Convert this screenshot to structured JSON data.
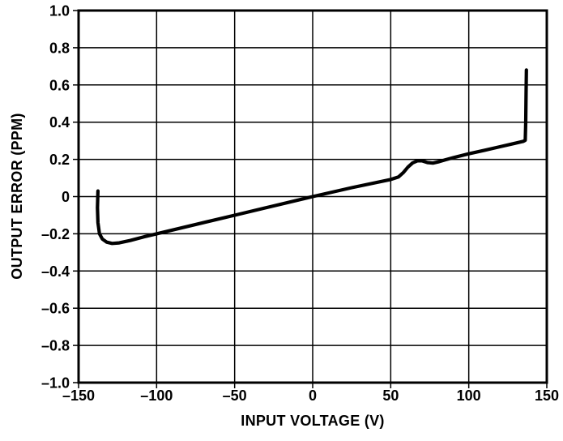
{
  "figure": {
    "background": "#ffffff",
    "foreground": "#000000"
  },
  "chart_data": {
    "type": "line",
    "title": "",
    "xlabel": "INPUT VOLTAGE (V)",
    "ylabel": "OUTPUT ERROR (PPM)",
    "xlim": [
      -150,
      150
    ],
    "ylim": [
      -1.0,
      1.0
    ],
    "grid": true,
    "legend": "none",
    "line_color": "#000000",
    "grid_color": "#000000",
    "x_ticks": [
      -150,
      -100,
      -50,
      0,
      50,
      100,
      150
    ],
    "x_tick_labels": [
      "–150",
      "–100",
      "–50",
      "0",
      "50",
      "100",
      "150"
    ],
    "y_ticks": [
      1.0,
      0.8,
      0.6,
      0.4,
      0.2,
      0,
      -0.2,
      -0.4,
      -0.6,
      -0.8,
      -1.0
    ],
    "y_tick_labels": [
      "1.0",
      "0.8",
      "0.6",
      "0.4",
      "0.2",
      "0",
      "–0.2",
      "–0.4",
      "–0.6",
      "–0.8",
      "–1.0"
    ],
    "series": [
      {
        "name": "output-error-vs-input-voltage",
        "points": [
          [
            -137.6,
            0.03
          ],
          [
            -137.9,
            -0.06
          ],
          [
            -137.6,
            -0.14
          ],
          [
            -136.6,
            -0.2
          ],
          [
            -134.8,
            -0.228
          ],
          [
            -132.0,
            -0.245
          ],
          [
            -128.5,
            -0.252
          ],
          [
            -124.0,
            -0.249
          ],
          [
            -117.0,
            -0.236
          ],
          [
            -108.0,
            -0.216
          ],
          [
            -100.0,
            -0.2
          ],
          [
            -75.0,
            -0.15
          ],
          [
            -50.0,
            -0.1
          ],
          [
            -25.0,
            -0.05
          ],
          [
            0.0,
            0.0
          ],
          [
            25.0,
            0.048
          ],
          [
            50.0,
            0.092
          ],
          [
            55.0,
            0.106
          ],
          [
            58.0,
            0.128
          ],
          [
            61.0,
            0.158
          ],
          [
            64.0,
            0.181
          ],
          [
            67.0,
            0.192
          ],
          [
            70.0,
            0.192
          ],
          [
            73.5,
            0.183
          ],
          [
            77.0,
            0.18
          ],
          [
            81.0,
            0.188
          ],
          [
            85.0,
            0.198
          ],
          [
            90.0,
            0.209
          ],
          [
            100.0,
            0.23
          ],
          [
            110.0,
            0.249
          ],
          [
            120.0,
            0.268
          ],
          [
            130.0,
            0.287
          ],
          [
            135.0,
            0.297
          ],
          [
            136.2,
            0.303
          ],
          [
            136.5,
            0.4
          ],
          [
            136.7,
            0.55
          ],
          [
            136.9,
            0.68
          ]
        ]
      }
    ]
  }
}
